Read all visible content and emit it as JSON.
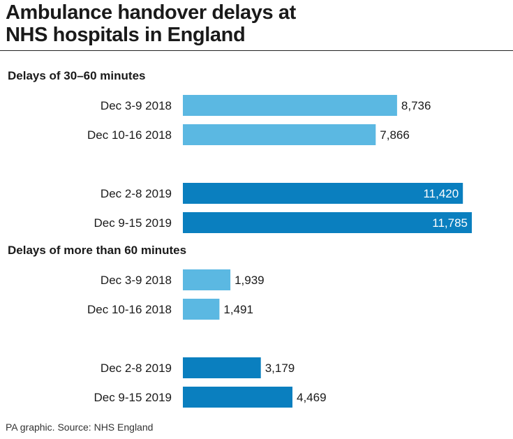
{
  "title_line1": "Ambulance handover delays at",
  "title_line2": "NHS hospitals in England",
  "source": "PA graphic. Source: NHS England",
  "colors": {
    "light": "#5bb8e2",
    "dark": "#0a7fbf"
  },
  "chart_data": {
    "type": "bar",
    "orientation": "horizontal",
    "xlim": [
      0,
      11785
    ],
    "groups": [
      {
        "label": "Delays of 30–60 minutes",
        "bars": [
          {
            "category": "Dec 3-9 2018",
            "value": 8736,
            "value_label": "8,736",
            "shade": "light"
          },
          {
            "category": "Dec 10-16 2018",
            "value": 7866,
            "value_label": "7,866",
            "shade": "light"
          },
          {
            "category": "Dec 2-8 2019",
            "value": 11420,
            "value_label": "11,420",
            "shade": "dark"
          },
          {
            "category": "Dec 9-15 2019",
            "value": 11785,
            "value_label": "11,785",
            "shade": "dark"
          }
        ]
      },
      {
        "label": "Delays of more than 60 minutes",
        "bars": [
          {
            "category": "Dec 3-9 2018",
            "value": 1939,
            "value_label": "1,939",
            "shade": "light"
          },
          {
            "category": "Dec 10-16 2018",
            "value": 1491,
            "value_label": "1,491",
            "shade": "light"
          },
          {
            "category": "Dec 2-8 2019",
            "value": 3179,
            "value_label": "3,179",
            "shade": "dark"
          },
          {
            "category": "Dec 9-15 2019",
            "value": 4469,
            "value_label": "4,469",
            "shade": "dark"
          }
        ]
      }
    ]
  }
}
